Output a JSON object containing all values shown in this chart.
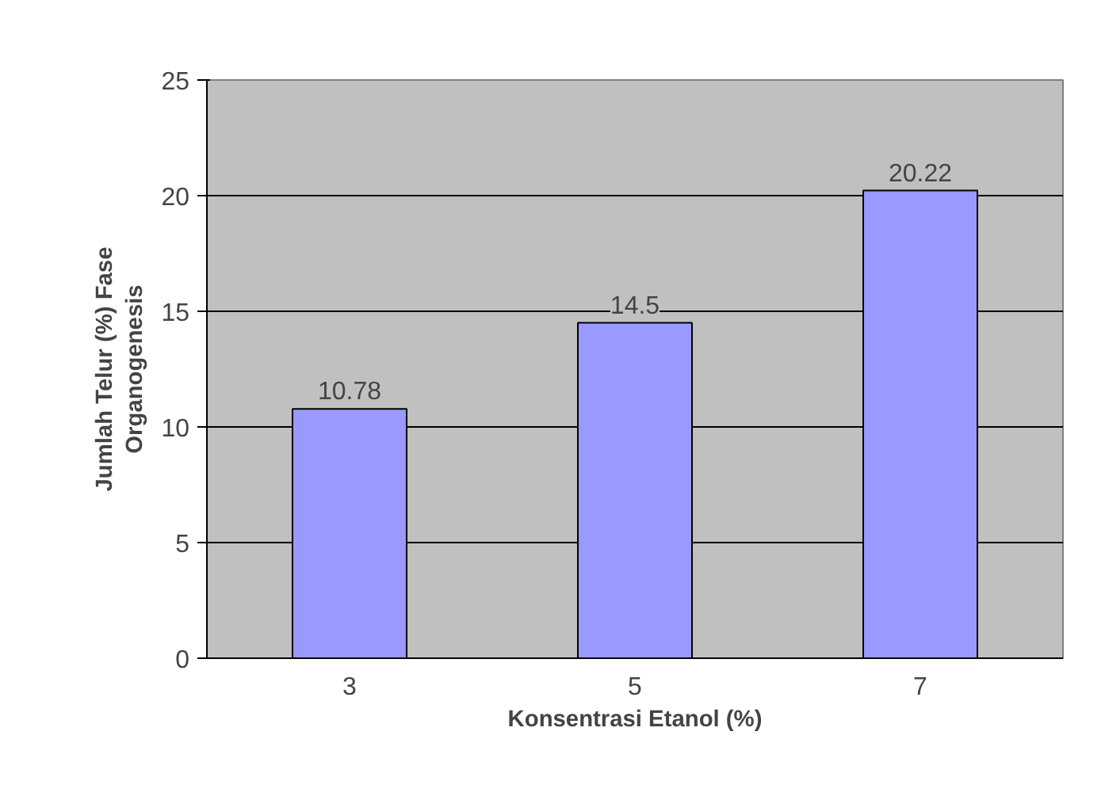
{
  "chart_data": {
    "type": "bar",
    "xlabel": "Konsentrasi Etanol (%)",
    "ylabel": "Jumlah Telur (%) Fase\nOrganogenesis",
    "categories": [
      "3",
      "5",
      "7"
    ],
    "values": [
      10.78,
      14.5,
      20.22
    ],
    "color": "#9999ff",
    "ylim": [
      0,
      25
    ],
    "yticks": [
      0,
      5,
      10,
      15,
      20,
      25
    ],
    "grid": "y",
    "data_labels": true
  }
}
